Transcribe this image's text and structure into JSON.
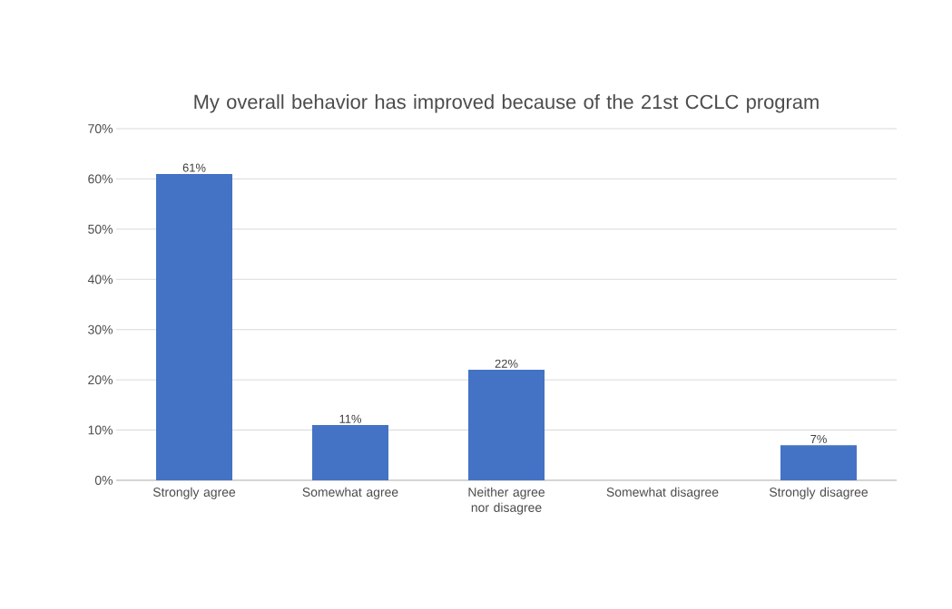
{
  "chart_data": {
    "type": "bar",
    "title": "My overall behavior has improved because of the 21st CCLC program",
    "categories": [
      "Strongly agree",
      "Somewhat agree",
      "Neither agree nor disagree",
      "Somewhat disagree",
      "Strongly disagree"
    ],
    "values": [
      61,
      11,
      22,
      0,
      7
    ],
    "value_labels": [
      "61%",
      "11%",
      "22%",
      null,
      "7%"
    ],
    "color": "#4472c4",
    "ylim": [
      0,
      70
    ],
    "yticks": [
      {
        "value": 0,
        "label": "0%"
      },
      {
        "value": 10,
        "label": "10%"
      },
      {
        "value": 20,
        "label": "20%"
      },
      {
        "value": 30,
        "label": "30%"
      },
      {
        "value": 40,
        "label": "40%"
      },
      {
        "value": 50,
        "label": "50%"
      },
      {
        "value": 60,
        "label": "60%"
      },
      {
        "value": 70,
        "label": "70%"
      }
    ],
    "grid": "y"
  }
}
